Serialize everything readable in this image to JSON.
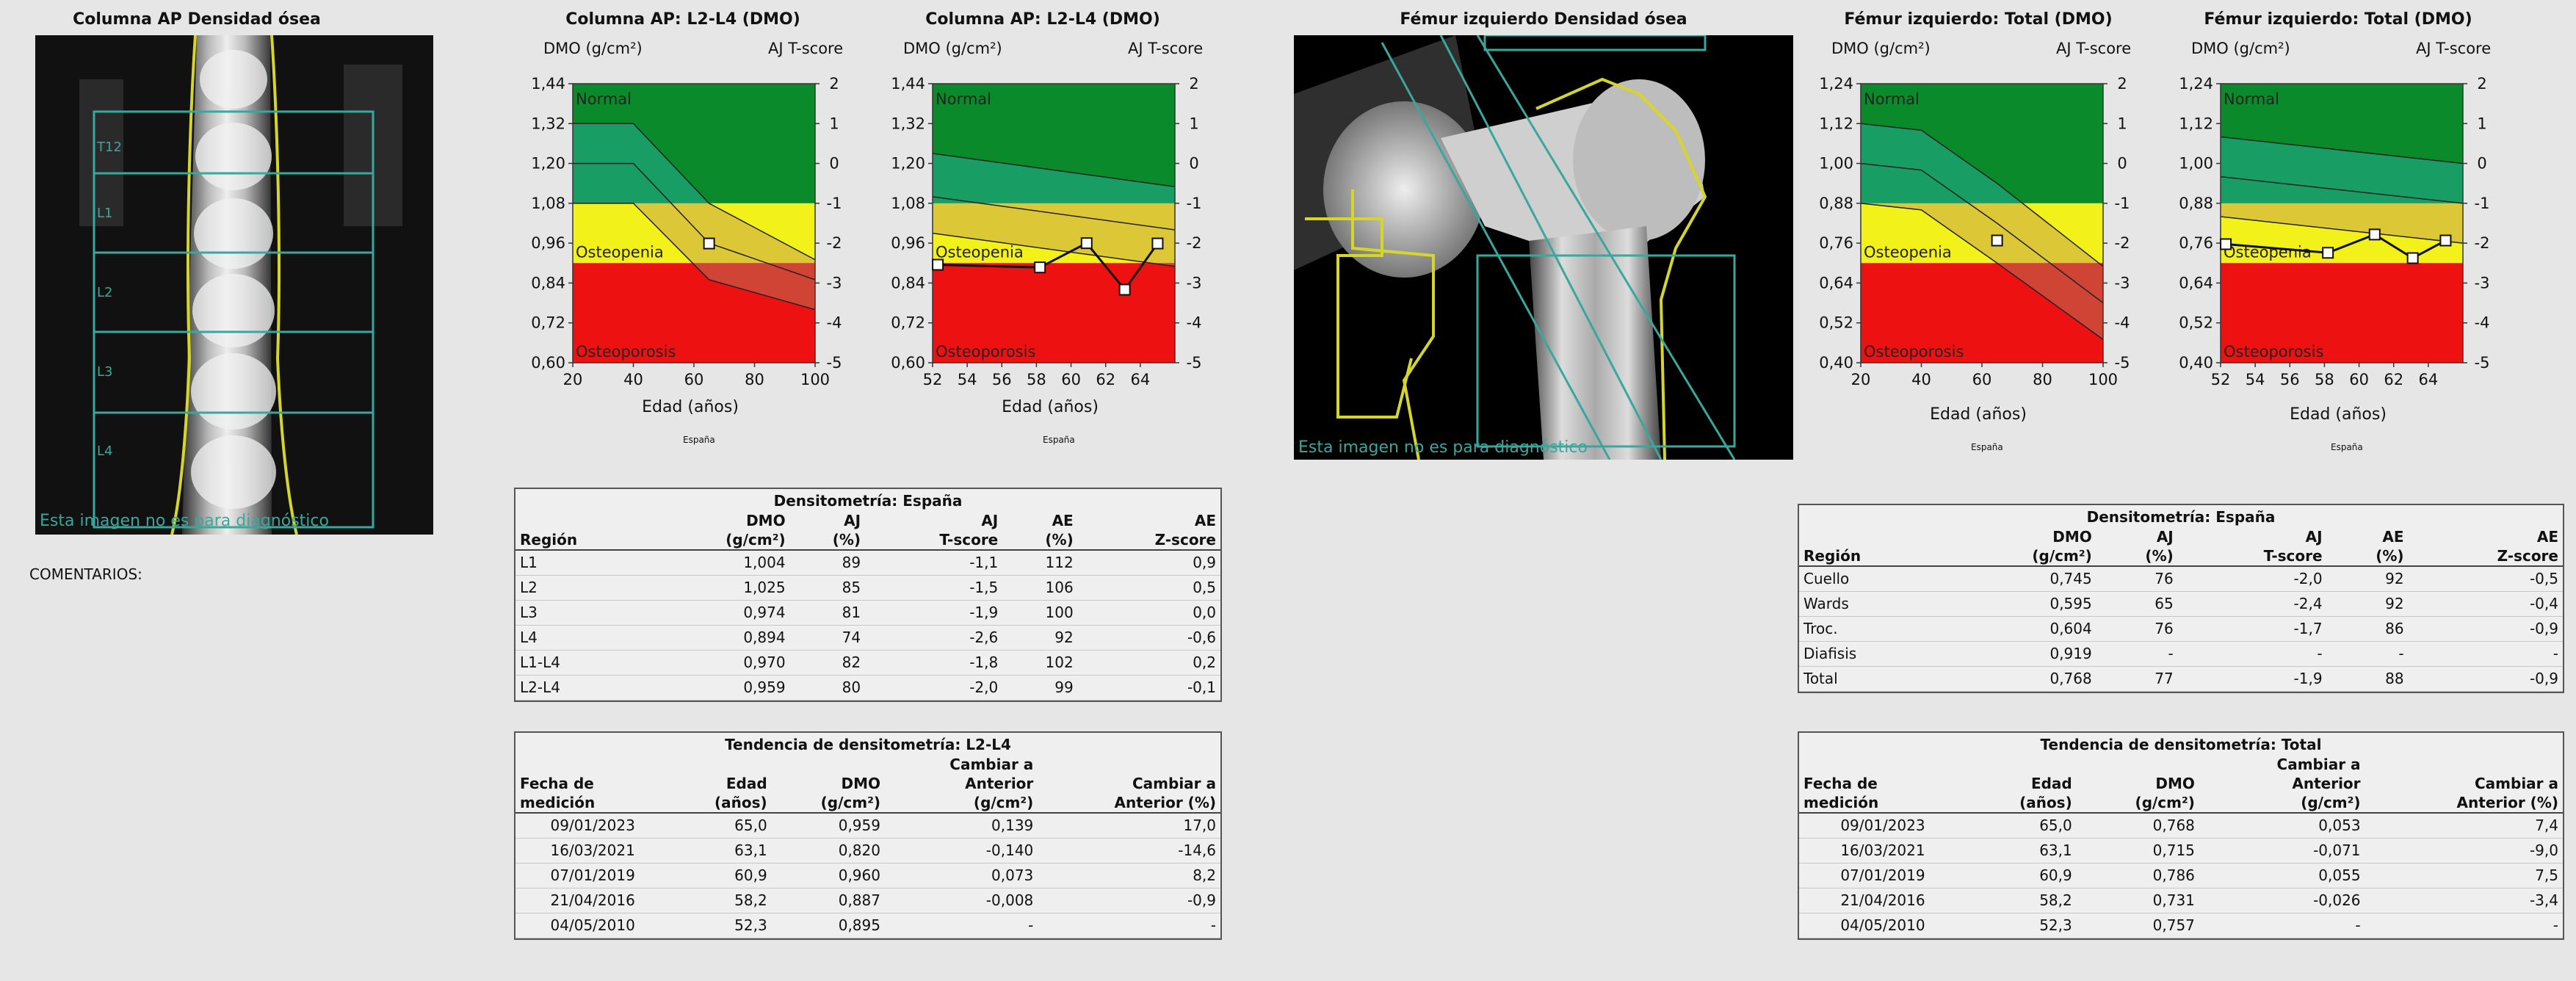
{
  "spine": {
    "image_title": "Columna AP Densidad ósea",
    "disclaimer": "Esta imagen no es para diagnóstico",
    "roi_labels": [
      "L1",
      "L2",
      "L3",
      "L4"
    ],
    "roi_partial_label": "T12",
    "chart_left_title": "Columna AP: L2-L4 (DMO)",
    "chart_right_title": "Columna AP: L2-L4 (DMO)",
    "left_axis_unit": "DMO (g/cm²)",
    "right_axis_unit": "AJ T-score",
    "xlabel": "Edad (años)",
    "source_label": "España",
    "zone_normal": "Normal",
    "zone_osteopenia": "Osteopenia",
    "zone_osteoporosis": "Osteoporosis",
    "comments_label": "COMENTARIOS:",
    "table": {
      "title": "Densitometría: España",
      "headers": [
        [
          "",
          "DMO",
          "AJ",
          "AJ",
          "AE",
          "AE"
        ],
        [
          "Región",
          "(g/cm²)",
          "(%)",
          "T-score",
          "(%)",
          "Z-score"
        ]
      ],
      "rows": [
        [
          "L1",
          "1,004",
          "89",
          "-1,1",
          "112",
          "0,9"
        ],
        [
          "L2",
          "1,025",
          "85",
          "-1,5",
          "106",
          "0,5"
        ],
        [
          "L3",
          "0,974",
          "81",
          "-1,9",
          "100",
          "0,0"
        ],
        [
          "L4",
          "0,894",
          "74",
          "-2,6",
          "92",
          "-0,6"
        ],
        [
          "L1-L4",
          "0,970",
          "82",
          "-1,8",
          "102",
          "0,2"
        ],
        [
          "L2-L4",
          "0,959",
          "80",
          "-2,0",
          "99",
          "-0,1"
        ]
      ]
    },
    "trend": {
      "title": "Tendencia de densitometría: L2-L4",
      "headers": [
        [
          "",
          "",
          "",
          "Cambiar a",
          ""
        ],
        [
          "Fecha de",
          "Edad",
          "DMO",
          "Anterior",
          "Cambiar a"
        ],
        [
          "medición",
          "(años)",
          "(g/cm²)",
          "(g/cm²)",
          "Anterior (%)"
        ]
      ],
      "rows": [
        [
          "09/01/2023",
          "65,0",
          "0,959",
          "0,139",
          "17,0"
        ],
        [
          "16/03/2021",
          "63,1",
          "0,820",
          "-0,140",
          "-14,6"
        ],
        [
          "07/01/2019",
          "60,9",
          "0,960",
          "0,073",
          "8,2"
        ],
        [
          "21/04/2016",
          "58,2",
          "0,887",
          "-0,008",
          "-0,9"
        ],
        [
          "04/05/2010",
          "52,3",
          "0,895",
          "-",
          "-"
        ]
      ]
    }
  },
  "femur": {
    "image_title": "Fémur izquierdo Densidad ósea",
    "disclaimer": "Esta imagen no es para diagnóstico",
    "chart_left_title": "Fémur izquierdo: Total (DMO)",
    "chart_right_title": "Fémur izquierdo: Total (DMO)",
    "left_axis_unit": "DMO (g/cm²)",
    "right_axis_unit": "AJ T-score",
    "xlabel": "Edad (años)",
    "source_label": "España",
    "zone_normal": "Normal",
    "zone_osteopenia": "Osteopenia",
    "zone_osteoporosis": "Osteoporosis",
    "table": {
      "title": "Densitometría: España",
      "headers": [
        [
          "",
          "DMO",
          "AJ",
          "AJ",
          "AE",
          "AE"
        ],
        [
          "Región",
          "(g/cm²)",
          "(%)",
          "T-score",
          "(%)",
          "Z-score"
        ]
      ],
      "rows": [
        [
          "Cuello",
          "0,745",
          "76",
          "-2,0",
          "92",
          "-0,5"
        ],
        [
          "Wards",
          "0,595",
          "65",
          "-2,4",
          "92",
          "-0,4"
        ],
        [
          "Troc.",
          "0,604",
          "76",
          "-1,7",
          "86",
          "-0,9"
        ],
        [
          "Diafisis",
          "0,919",
          "-",
          "-",
          "-",
          "-"
        ],
        [
          "Total",
          "0,768",
          "77",
          "-1,9",
          "88",
          "-0,9"
        ]
      ]
    },
    "trend": {
      "title": "Tendencia de densitometría: Total",
      "headers": [
        [
          "",
          "",
          "",
          "Cambiar a",
          ""
        ],
        [
          "Fecha de",
          "Edad",
          "DMO",
          "Anterior",
          "Cambiar a"
        ],
        [
          "medición",
          "(años)",
          "(g/cm²)",
          "(g/cm²)",
          "Anterior (%)"
        ]
      ],
      "rows": [
        [
          "09/01/2023",
          "65,0",
          "0,768",
          "0,053",
          "7,4"
        ],
        [
          "16/03/2021",
          "63,1",
          "0,715",
          "-0,071",
          "-9,0"
        ],
        [
          "07/01/2019",
          "60,9",
          "0,786",
          "0,055",
          "7,5"
        ],
        [
          "21/04/2016",
          "58,2",
          "0,731",
          "-0,026",
          "-3,4"
        ],
        [
          "04/05/2010",
          "52,3",
          "0,757",
          "-",
          "-"
        ]
      ]
    }
  },
  "colors": {
    "normal": "#0a8a2a",
    "osteopenia": "#f2f21a",
    "osteoporosis": "#ee1111",
    "band_normal": "#1a9f6a",
    "band_osteopenia": "#d9c23a",
    "band_osteoporosis": "#cc4a3a",
    "roi": "#3aa79c",
    "edge": "#d6d62a"
  },
  "chart_data": [
    {
      "type": "line",
      "title": "Columna AP: L2-L4 (DMO)",
      "xlabel": "Edad (años)",
      "ylabel": "DMO (g/cm²)",
      "y2label": "AJ T-score",
      "xlim": [
        20,
        100
      ],
      "ylim": [
        0.6,
        1.44
      ],
      "y2lim": [
        -5,
        2
      ],
      "xticks": [
        "20",
        "40",
        "60",
        "80",
        "100"
      ],
      "yticks": [
        "0,60",
        "0,72",
        "0,84",
        "0,96",
        "1,08",
        "1,20",
        "1,32",
        "1,44"
      ],
      "y2ticks": [
        "-5",
        "-4",
        "-3",
        "-2",
        "-1",
        "0",
        "1",
        "2"
      ],
      "zones": {
        "osteoporosis": [
          0.6,
          0.9
        ],
        "osteopenia": [
          0.9,
          1.08
        ],
        "normal": [
          1.08,
          1.44
        ]
      },
      "reference": {
        "x": [
          20,
          40,
          65,
          100
        ],
        "upper": [
          1.32,
          1.32,
          1.08,
          0.91
        ],
        "mid": [
          1.2,
          1.2,
          0.96,
          0.85
        ],
        "lower": [
          1.08,
          1.08,
          0.85,
          0.76
        ]
      },
      "series": [
        {
          "x": [
            65.0
          ],
          "y": [
            0.959
          ]
        }
      ]
    },
    {
      "type": "line",
      "title": "Columna AP: L2-L4 (DMO)",
      "xlabel": "Edad (años)",
      "ylabel": "DMO (g/cm²)",
      "y2label": "AJ T-score",
      "xlim": [
        52,
        66
      ],
      "ylim": [
        0.6,
        1.44
      ],
      "y2lim": [
        -5,
        2
      ],
      "xticks": [
        "52",
        "54",
        "56",
        "58",
        "60",
        "62",
        "64"
      ],
      "yticks": [
        "0,60",
        "0,72",
        "0,84",
        "0,96",
        "1,08",
        "1,20",
        "1,32",
        "1,44"
      ],
      "y2ticks": [
        "-5",
        "-4",
        "-3",
        "-2",
        "-1",
        "0",
        "1",
        "2"
      ],
      "zones": {
        "osteoporosis": [
          0.6,
          0.9
        ],
        "osteopenia": [
          0.9,
          1.08
        ],
        "normal": [
          1.08,
          1.44
        ]
      },
      "reference": {
        "x": [
          52,
          66
        ],
        "upper": [
          1.23,
          1.13
        ],
        "mid": [
          1.1,
          1.0
        ],
        "lower": [
          0.99,
          0.89
        ]
      },
      "series": [
        {
          "x": [
            52.3,
            58.2,
            60.9,
            63.1,
            65.0
          ],
          "y": [
            0.895,
            0.887,
            0.96,
            0.82,
            0.959
          ]
        }
      ]
    },
    {
      "type": "line",
      "title": "Fémur izquierdo: Total (DMO)",
      "xlabel": "Edad (años)",
      "ylabel": "DMO (g/cm²)",
      "y2label": "AJ T-score",
      "xlim": [
        20,
        100
      ],
      "ylim": [
        0.4,
        1.24
      ],
      "y2lim": [
        -5,
        2
      ],
      "xticks": [
        "20",
        "40",
        "60",
        "80",
        "100"
      ],
      "yticks": [
        "0,40",
        "0,52",
        "0,64",
        "0,76",
        "0,88",
        "1,00",
        "1,12",
        "1,24"
      ],
      "y2ticks": [
        "-5",
        "-4",
        "-3",
        "-2",
        "-1",
        "0",
        "1",
        "2"
      ],
      "zones": {
        "osteoporosis": [
          0.4,
          0.7
        ],
        "osteopenia": [
          0.7,
          0.88
        ],
        "normal": [
          0.88,
          1.24
        ]
      },
      "reference": {
        "x": [
          20,
          40,
          65,
          100
        ],
        "upper": [
          1.12,
          1.1,
          0.94,
          0.69
        ],
        "mid": [
          1.0,
          0.98,
          0.82,
          0.58
        ],
        "lower": [
          0.88,
          0.86,
          0.7,
          0.47
        ]
      },
      "series": [
        {
          "x": [
            65.0
          ],
          "y": [
            0.768
          ]
        }
      ]
    },
    {
      "type": "line",
      "title": "Fémur izquierdo: Total (DMO)",
      "xlabel": "Edad (años)",
      "ylabel": "DMO (g/cm²)",
      "y2label": "AJ T-score",
      "xlim": [
        52,
        66
      ],
      "ylim": [
        0.4,
        1.24
      ],
      "y2lim": [
        -5,
        2
      ],
      "xticks": [
        "52",
        "54",
        "56",
        "58",
        "60",
        "62",
        "64"
      ],
      "yticks": [
        "0,40",
        "0,52",
        "0,64",
        "0,76",
        "0,88",
        "1,00",
        "1,12",
        "1,24"
      ],
      "y2ticks": [
        "-5",
        "-4",
        "-3",
        "-2",
        "-1",
        "0",
        "1",
        "2"
      ],
      "zones": {
        "osteoporosis": [
          0.4,
          0.7
        ],
        "osteopenia": [
          0.7,
          0.88
        ],
        "normal": [
          0.88,
          1.24
        ]
      },
      "reference": {
        "x": [
          52,
          66
        ],
        "upper": [
          1.08,
          1.0
        ],
        "mid": [
          0.96,
          0.88
        ],
        "lower": [
          0.84,
          0.76
        ]
      },
      "series": [
        {
          "x": [
            52.3,
            58.2,
            60.9,
            63.1,
            65.0
          ],
          "y": [
            0.757,
            0.731,
            0.786,
            0.715,
            0.768
          ]
        }
      ]
    }
  ]
}
